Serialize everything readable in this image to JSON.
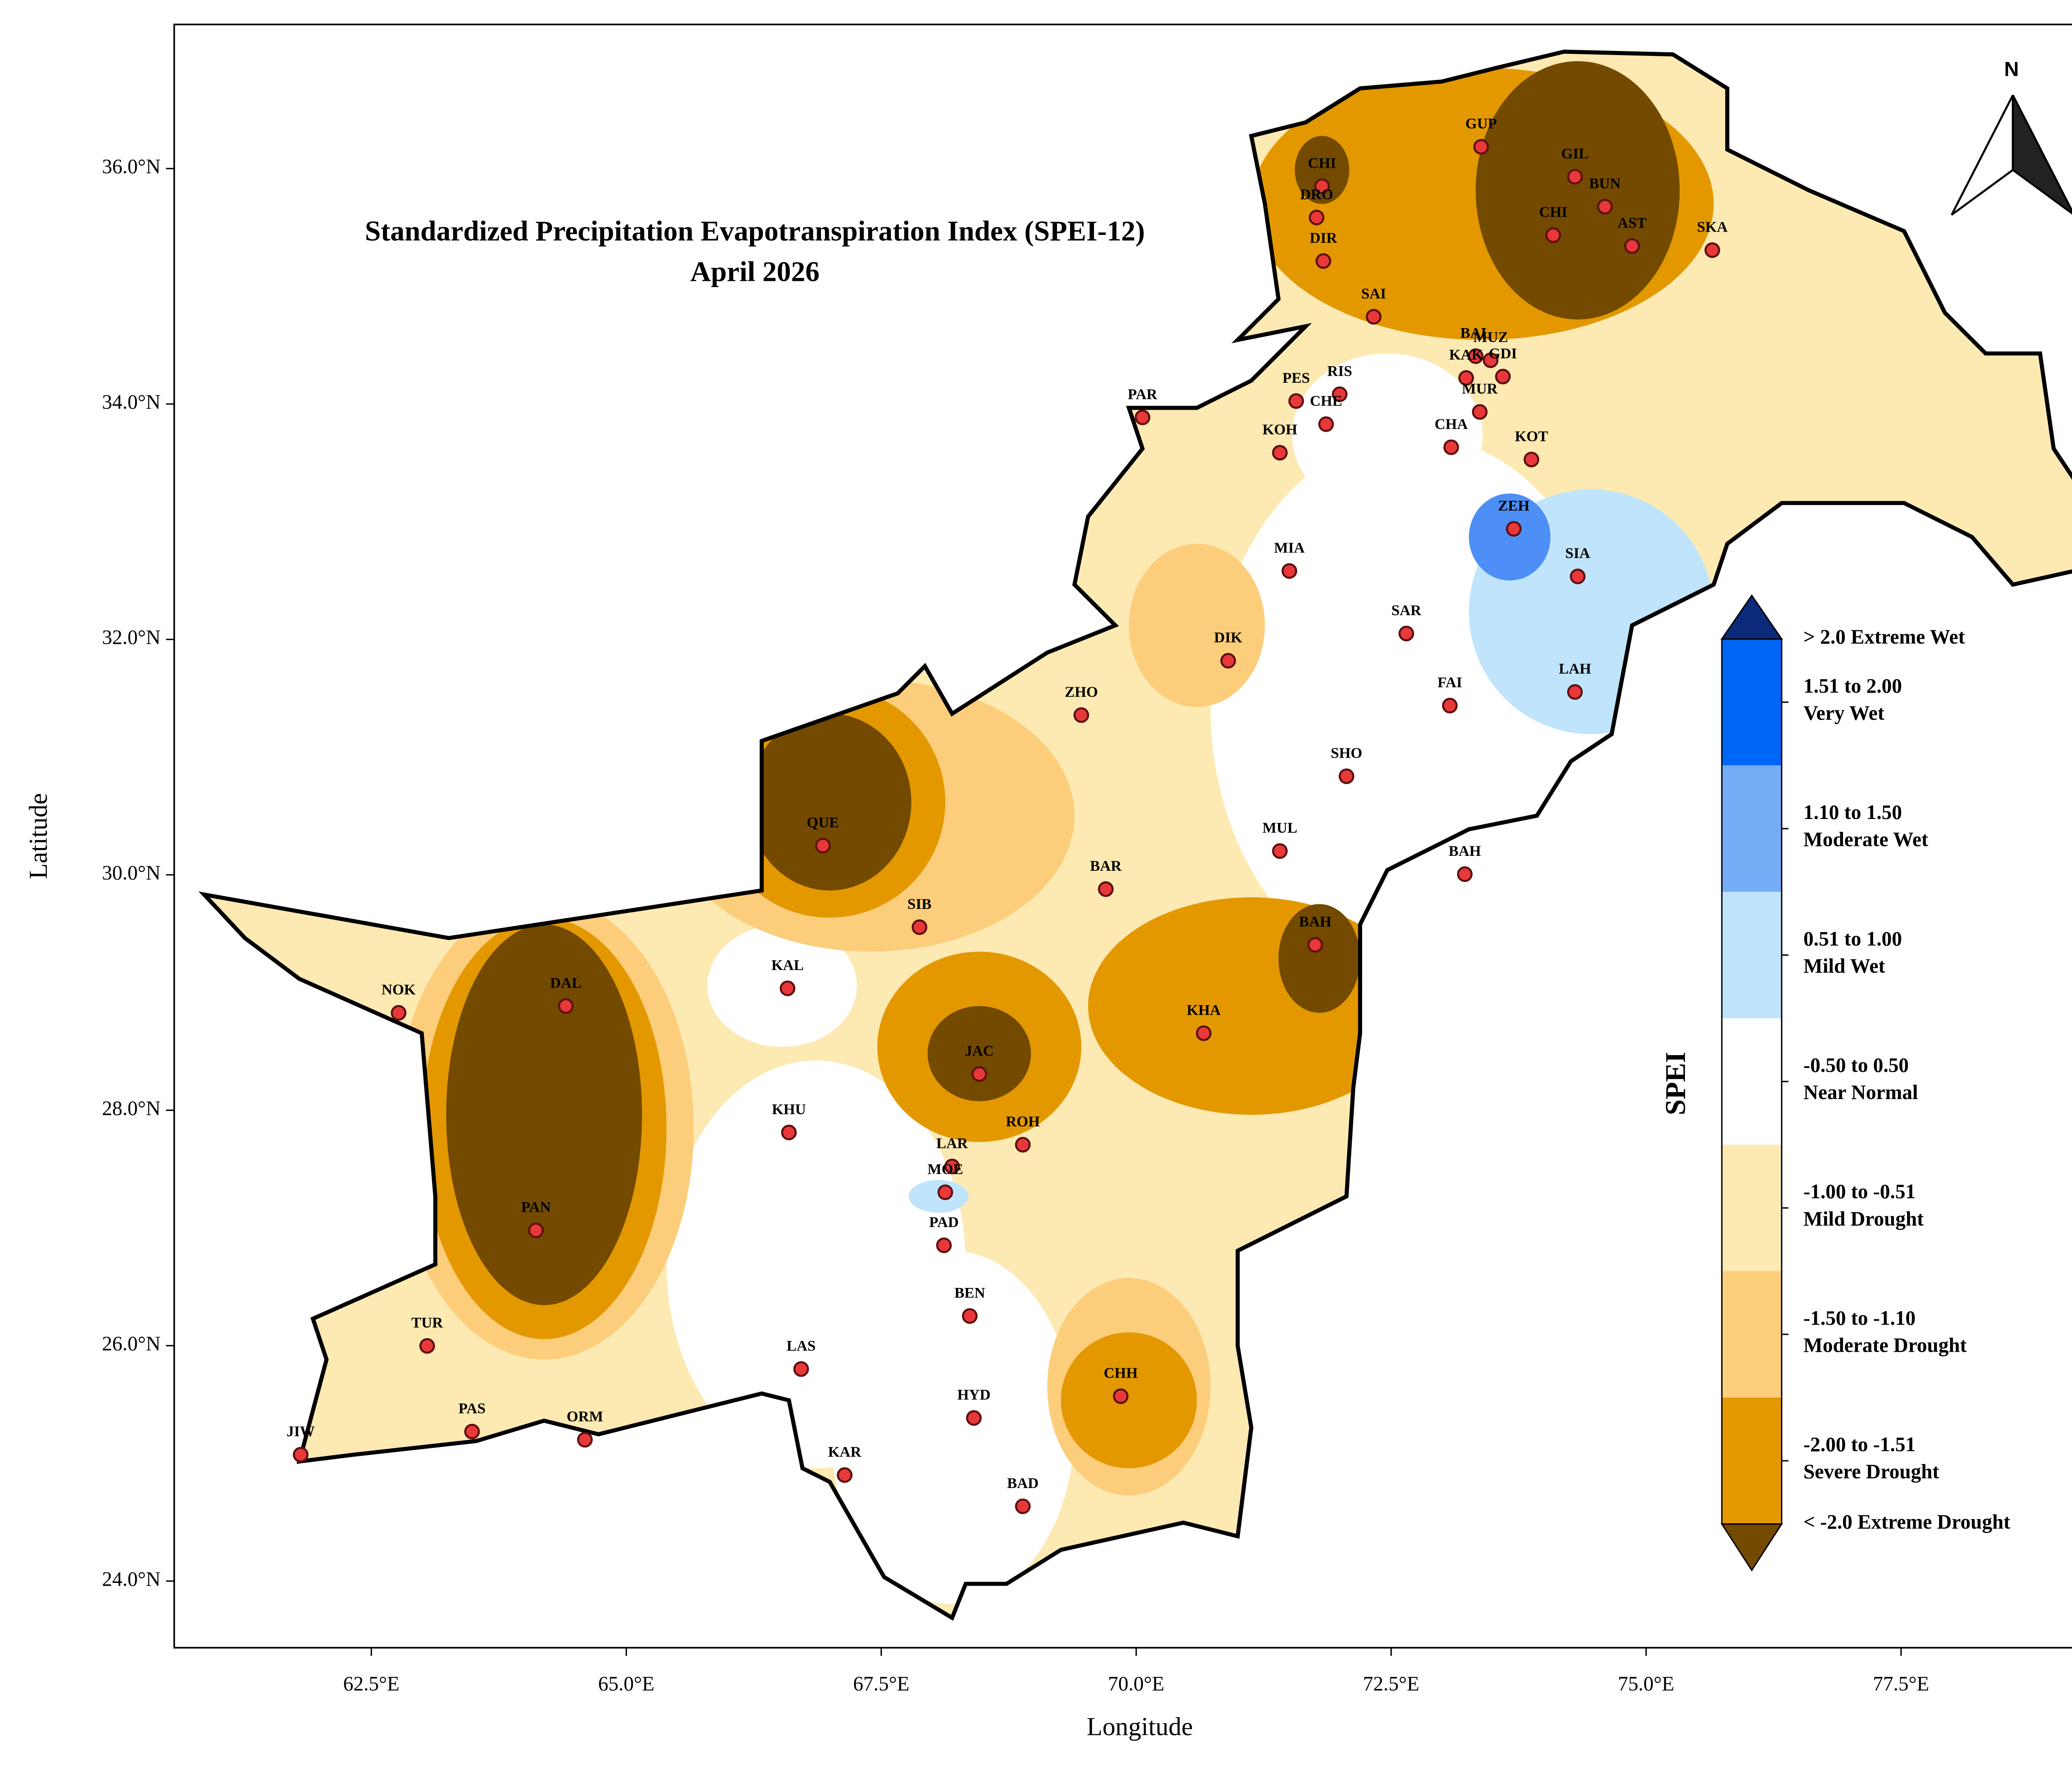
{
  "map": {
    "title": "Standardized Precipitation Evapotranspiration Index (SPEI-12)",
    "subtitle": "April 2026",
    "xlabel": "Longitude",
    "ylabel": "Latitude",
    "xlim": [
      60.567,
      79.33
    ],
    "ylim": [
      23.434,
      37.224
    ],
    "xticks": [
      {
        "value": 62.5,
        "label": "62.5°E"
      },
      {
        "value": 65,
        "label": "65.0°E"
      },
      {
        "value": 67.5,
        "label": "67.5°E"
      },
      {
        "value": 70,
        "label": "70.0°E"
      },
      {
        "value": 72.5,
        "label": "72.5°E"
      },
      {
        "value": 75,
        "label": "75.0°E"
      },
      {
        "value": 77.5,
        "label": "77.5°E"
      }
    ],
    "yticks": [
      {
        "value": 24,
        "label": "24.0°N"
      },
      {
        "value": 26,
        "label": "26.0°N"
      },
      {
        "value": 28,
        "label": "28.0°N"
      },
      {
        "value": 30,
        "label": "30.0°N"
      },
      {
        "value": 32,
        "label": "32.0°N"
      },
      {
        "value": 34,
        "label": "34.0°N"
      },
      {
        "value": 36,
        "label": "36.0°N"
      }
    ],
    "north": "N",
    "stations": [
      "CHI",
      "DRO",
      "DIR",
      "GUP",
      "GIL",
      "BUN",
      "CHI",
      "AST",
      "SKA",
      "SAI",
      "BAL",
      "MUZ",
      "KAK",
      "GDI",
      "MUR",
      "CHA",
      "PES",
      "RIS",
      "CHE",
      "KOH",
      "PAR",
      "KOT",
      "ZEH",
      "SIA",
      "MIA",
      "SAR",
      "DIK",
      "FAI",
      "LAH",
      "ZHO",
      "SHO",
      "QUE",
      "MUL",
      "BAH",
      "BAR",
      "SIB",
      "BAH",
      "KAL",
      "NOK",
      "DAL",
      "KHA",
      "JAC",
      "KHU",
      "LAR",
      "MOE",
      "ROH",
      "PAN",
      "PAD",
      "BEN",
      "TUR",
      "LAS",
      "CHH",
      "HYD",
      "PAS",
      "ORM",
      "JIW",
      "KAR",
      "BAD"
    ],
    "legend": {
      "title": "SPEI",
      "items": [
        {
          "label": "> 2.0 Extreme Wet",
          "color": "#0b2a7a"
        },
        {
          "range": "1.51 to 2.00",
          "name": "Very Wet",
          "color": "#0066f5"
        },
        {
          "range": "1.10 to 1.50",
          "name": "Moderate Wet",
          "color": "#74acf6"
        },
        {
          "range": "0.51 to 1.00",
          "name": "Mild Wet",
          "color": "#bfe4fb"
        },
        {
          "range": "-0.50 to 0.50",
          "name": "Near Normal",
          "color": "#ffffff"
        },
        {
          "range": "-1.00 to -0.51",
          "name": "Mild Drought",
          "color": "#fde9b2"
        },
        {
          "range": "-1.50 to -1.10",
          "name": "Moderate Drought",
          "color": "#fccd7a"
        },
        {
          "range": "-2.00 to -1.51",
          "name": "Severe Drought",
          "color": "#e39800"
        },
        {
          "label": "< -2.0 Extreme Drought",
          "color": "#734a00"
        }
      ]
    }
  }
}
